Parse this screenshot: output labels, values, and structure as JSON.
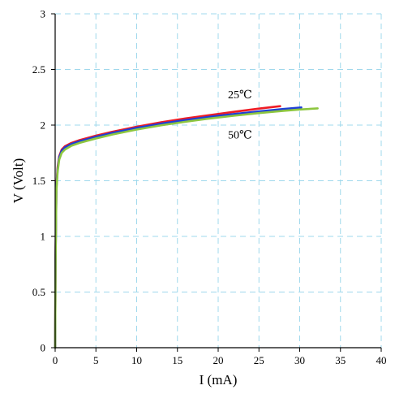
{
  "chart_data": {
    "type": "line",
    "title": "",
    "xlabel": "I (mA)",
    "ylabel": "V (Volt)",
    "xlim": [
      0,
      40
    ],
    "ylim": [
      0,
      3
    ],
    "xticks": [
      0,
      5,
      10,
      15,
      20,
      25,
      30,
      35,
      40
    ],
    "yticks": [
      0,
      0.5,
      1,
      1.5,
      2,
      2.5,
      3
    ],
    "xtick_labels": [
      "0",
      "5",
      "10",
      "15",
      "20",
      "25",
      "30",
      "35",
      "40"
    ],
    "ytick_labels": [
      "0",
      "0.5",
      "1",
      "1.5",
      "2",
      "2.5",
      "3"
    ],
    "grid": true,
    "annotations": [
      {
        "text": "25℃",
        "x": 21.2,
        "y": 2.24
      },
      {
        "text": "50℃",
        "x": 21.2,
        "y": 1.88
      }
    ],
    "series": [
      {
        "color": "#ee1c25",
        "x": [
          0,
          0.05,
          0.15,
          0.3,
          0.5,
          0.8,
          1.2,
          2,
          3,
          5,
          7,
          10,
          13,
          16,
          19,
          22,
          25,
          27.6
        ],
        "y": [
          0,
          0.8,
          1.45,
          1.62,
          1.72,
          1.78,
          1.81,
          1.84,
          1.865,
          1.905,
          1.94,
          1.985,
          2.025,
          2.06,
          2.09,
          2.12,
          2.148,
          2.17
        ]
      },
      {
        "color": "#1f3fd6",
        "x": [
          0,
          0.05,
          0.15,
          0.3,
          0.5,
          0.8,
          1.2,
          2,
          3,
          5,
          7,
          10,
          13,
          16,
          19,
          22,
          25,
          28,
          30.2
        ],
        "y": [
          0,
          0.78,
          1.43,
          1.6,
          1.71,
          1.77,
          1.8,
          1.83,
          1.855,
          1.895,
          1.93,
          1.975,
          2.013,
          2.045,
          2.075,
          2.1,
          2.123,
          2.145,
          2.158
        ]
      },
      {
        "color": "#8dc63f",
        "x": [
          0,
          0.05,
          0.15,
          0.3,
          0.5,
          0.8,
          1.2,
          2,
          3,
          5,
          7,
          10,
          13,
          16,
          19,
          22,
          25,
          28,
          30,
          32.2
        ],
        "y": [
          0,
          0.75,
          1.4,
          1.58,
          1.69,
          1.75,
          1.78,
          1.815,
          1.84,
          1.88,
          1.915,
          1.96,
          1.998,
          2.03,
          2.06,
          2.085,
          2.108,
          2.128,
          2.14,
          2.15
        ]
      }
    ]
  }
}
